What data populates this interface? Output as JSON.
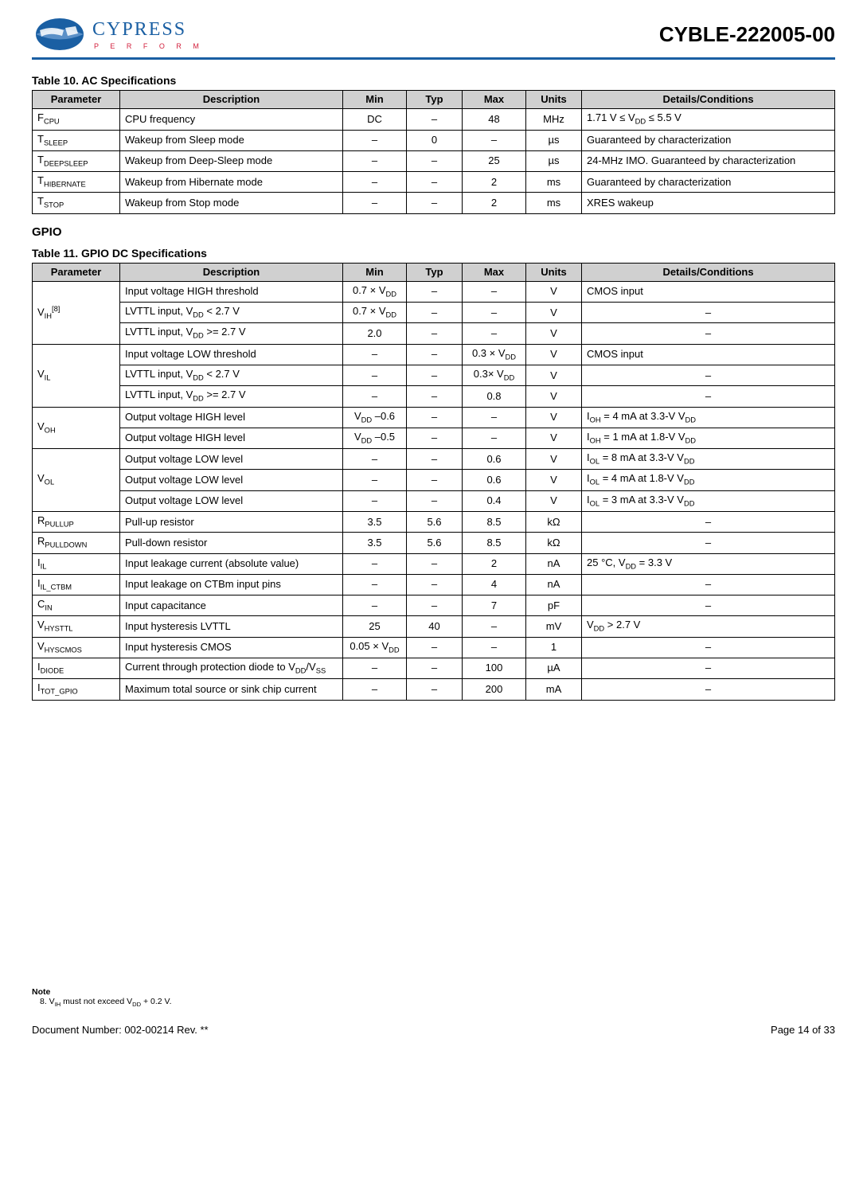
{
  "header": {
    "logo_brand": "CYPRESS",
    "logo_tagline": "P E R F O R M",
    "logo_colors": {
      "brand": "#1a5fa3",
      "tag": "#d21f3c",
      "rule": "#1a5fa3"
    },
    "part_number": "CYBLE-222005-00"
  },
  "table10": {
    "title": "Table 10.  AC Specifications",
    "header_bg": "#d0d0d0",
    "columns": [
      "Parameter",
      "Description",
      "Min",
      "Typ",
      "Max",
      "Units",
      "Details/Conditions"
    ],
    "rows": [
      {
        "param": "F<sub>CPU</sub>",
        "desc": "CPU frequency",
        "min": "DC",
        "typ": "–",
        "max": "48",
        "units": "MHz",
        "det": "1.71 V ≤ V<sub>DD</sub> ≤ 5.5 V"
      },
      {
        "param": "T<sub>SLEEP</sub>",
        "desc": "Wakeup from Sleep mode",
        "min": "–",
        "typ": "0",
        "max": "–",
        "units": "µs",
        "det": "Guaranteed by characterization"
      },
      {
        "param": "T<sub>DEEPSLEEP</sub>",
        "desc": "Wakeup from Deep-Sleep mode",
        "min": "–",
        "typ": "–",
        "max": "25",
        "units": "µs",
        "det": "24-MHz IMO. Guaranteed by characterization"
      },
      {
        "param": "T<sub>HIBERNATE</sub>",
        "desc": "Wakeup from Hibernate mode",
        "min": "–",
        "typ": "–",
        "max": "2",
        "units": "ms",
        "det": "Guaranteed by characterization"
      },
      {
        "param": "T<sub>STOP</sub>",
        "desc": "Wakeup from Stop mode",
        "min": "–",
        "typ": "–",
        "max": "2",
        "units": "ms",
        "det": "XRES wakeup"
      }
    ]
  },
  "gpio_section_title": "GPIO",
  "table11": {
    "title": "Table 11.  GPIO DC Specifications",
    "header_bg": "#d0d0d0",
    "columns": [
      "Parameter",
      "Description",
      "Min",
      "Typ",
      "Max",
      "Units",
      "Details/Conditions"
    ],
    "groups": [
      {
        "param": "V<sub>IH</sub><sup>[8]</sup>",
        "rows": [
          {
            "desc": "Input voltage HIGH threshold",
            "min": "0.7 × V<sub>DD</sub>",
            "typ": "–",
            "max": "–",
            "units": "V",
            "det": "CMOS input",
            "det_center": false
          },
          {
            "desc": "LVTTL input, V<sub>DD</sub> < 2.7 V",
            "min": "0.7 × V<sub>DD</sub>",
            "typ": "–",
            "max": "–",
            "units": "V",
            "det": "–",
            "det_center": true
          },
          {
            "desc": "LVTTL input, V<sub>DD</sub> >= 2.7 V",
            "min": "2.0",
            "typ": "–",
            "max": "–",
            "units": "V",
            "det": "–",
            "det_center": true
          }
        ]
      },
      {
        "param": "V<sub>IL</sub>",
        "rows": [
          {
            "desc": "Input voltage LOW threshold",
            "min": "–",
            "typ": "–",
            "max": "0.3 × V<sub>DD</sub>",
            "units": "V",
            "det": "CMOS input",
            "det_center": false
          },
          {
            "desc": "LVTTL input, V<sub>DD</sub> < 2.7 V",
            "min": "–",
            "typ": "–",
            "max": "0.3× V<sub>DD</sub>",
            "units": "V",
            "det": "–",
            "det_center": true
          },
          {
            "desc": "LVTTL input, V<sub>DD</sub> >= 2.7 V",
            "min": "–",
            "typ": "–",
            "max": "0.8",
            "units": "V",
            "det": "–",
            "det_center": true
          }
        ]
      },
      {
        "param": "V<sub>OH</sub>",
        "rows": [
          {
            "desc": "Output voltage HIGH level",
            "min": "V<sub>DD</sub> –0.6",
            "typ": "–",
            "max": "–",
            "units": "V",
            "det": "I<sub>OH</sub> = 4 mA at 3.3-V V<sub>DD</sub>",
            "det_center": false
          },
          {
            "desc": "Output voltage HIGH level",
            "min": "V<sub>DD</sub> –0.5",
            "typ": "–",
            "max": "–",
            "units": "V",
            "det": "I<sub>OH</sub> = 1 mA at 1.8-V V<sub>DD</sub>",
            "det_center": false
          }
        ]
      },
      {
        "param": "V<sub>OL</sub>",
        "rows": [
          {
            "desc": "Output voltage LOW level",
            "min": "–",
            "typ": "–",
            "max": "0.6",
            "units": "V",
            "det": "I<sub>OL</sub> = 8 mA at 3.3-V V<sub>DD</sub>",
            "det_center": false
          },
          {
            "desc": "Output voltage LOW level",
            "min": "–",
            "typ": "–",
            "max": "0.6",
            "units": "V",
            "det": "I<sub>OL</sub> = 4 mA at 1.8-V V<sub>DD</sub>",
            "det_center": false
          },
          {
            "desc": "Output voltage LOW level",
            "min": "–",
            "typ": "–",
            "max": "0.4",
            "units": "V",
            "det": "I<sub>OL</sub> = 3 mA at 3.3-V V<sub>DD</sub>",
            "det_center": false
          }
        ]
      },
      {
        "param": "R<sub>PULLUP</sub>",
        "rows": [
          {
            "desc": "Pull-up resistor",
            "min": "3.5",
            "typ": "5.6",
            "max": "8.5",
            "units": "kΩ",
            "det": "–",
            "det_center": true
          }
        ]
      },
      {
        "param": "R<sub>PULLDOWN</sub>",
        "rows": [
          {
            "desc": "Pull-down resistor",
            "min": "3.5",
            "typ": "5.6",
            "max": "8.5",
            "units": "kΩ",
            "det": "–",
            "det_center": true
          }
        ]
      },
      {
        "param": "I<sub>IL</sub>",
        "rows": [
          {
            "desc": "Input leakage current (absolute value)",
            "min": "–",
            "typ": "–",
            "max": "2",
            "units": "nA",
            "det": "25 °C, V<sub>DD</sub> = 3.3 V",
            "det_center": false
          }
        ]
      },
      {
        "param": "I<sub>IL_CTBM</sub>",
        "rows": [
          {
            "desc": "Input leakage on CTBm input pins",
            "min": "–",
            "typ": "–",
            "max": "4",
            "units": "nA",
            "det": "–",
            "det_center": true
          }
        ]
      },
      {
        "param": "C<sub>IN</sub>",
        "rows": [
          {
            "desc": "Input capacitance",
            "min": "–",
            "typ": "–",
            "max": "7",
            "units": "pF",
            "det": "–",
            "det_center": true
          }
        ]
      },
      {
        "param": "V<sub>HYSTTL</sub>",
        "rows": [
          {
            "desc": "Input hysteresis LVTTL",
            "min": "25",
            "typ": "40",
            "max": "–",
            "units": "mV",
            "det": "V<sub>DD</sub> > 2.7 V",
            "det_center": false
          }
        ]
      },
      {
        "param": "V<sub>HYSCMOS</sub>",
        "rows": [
          {
            "desc": "Input hysteresis CMOS",
            "min": "0.05 × V<sub>DD</sub>",
            "typ": "–",
            "max": "–",
            "units": "1",
            "det": "–",
            "det_center": true
          }
        ]
      },
      {
        "param": "I<sub>DIODE</sub>",
        "rows": [
          {
            "desc": "Current through protection diode to V<sub>DD</sub>/V<sub>SS</sub>",
            "min": "–",
            "typ": "–",
            "max": "100",
            "units": "µA",
            "det": "–",
            "det_center": true
          }
        ]
      },
      {
        "param": "I<sub>TOT_GPIO</sub>",
        "rows": [
          {
            "desc": "Maximum total source or sink chip current",
            "min": "–",
            "typ": "–",
            "max": "200",
            "units": "mA",
            "det": "–",
            "det_center": true
          }
        ]
      }
    ]
  },
  "note": {
    "heading": "Note",
    "item": "8.  V<sub>IH</sub> must not exceed V<sub>DD</sub> + 0.2 V."
  },
  "footer": {
    "left": "Document Number: 002-00214 Rev. **",
    "right": "Page 14 of 33"
  }
}
